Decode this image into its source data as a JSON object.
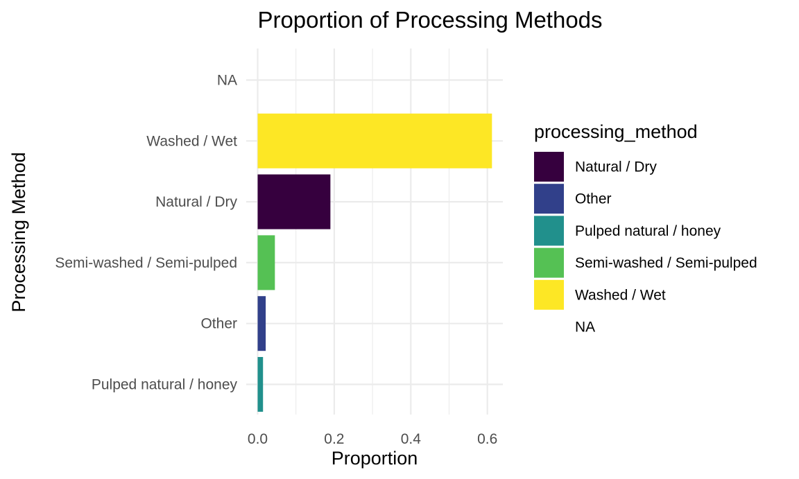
{
  "chart_data": {
    "type": "bar",
    "orientation": "horizontal",
    "title": "Proportion of Processing Methods",
    "xlabel": "Proportion",
    "ylabel": "Processing Method",
    "xlim": [
      0,
      0.64
    ],
    "x_ticks": [
      "0.0",
      "0.2",
      "0.4",
      "0.6"
    ],
    "x_tick_values": [
      0,
      0.2,
      0.4,
      0.6
    ],
    "categories": [
      "Pulped natural / honey",
      "Other",
      "Semi-washed / Semi-pulped",
      "Natural / Dry",
      "Washed / Wet",
      "NA"
    ],
    "values": [
      0.014,
      0.021,
      0.045,
      0.19,
      0.612,
      0
    ],
    "bar_colors": [
      "#21908C",
      "#31408A",
      "#55C154",
      "#36003E",
      "#FDE725",
      "#FFFFFF"
    ],
    "grid": true,
    "legend": {
      "title": "processing_method",
      "placement": "right",
      "items": [
        {
          "label": "Natural / Dry",
          "color": "#36003E"
        },
        {
          "label": "Other",
          "color": "#31408A"
        },
        {
          "label": "Pulped natural / honey",
          "color": "#21908C"
        },
        {
          "label": "Semi-washed / Semi-pulped",
          "color": "#55C154"
        },
        {
          "label": "Washed / Wet",
          "color": "#FDE725"
        },
        {
          "label": "NA",
          "color": "#FFFFFF"
        }
      ]
    }
  }
}
